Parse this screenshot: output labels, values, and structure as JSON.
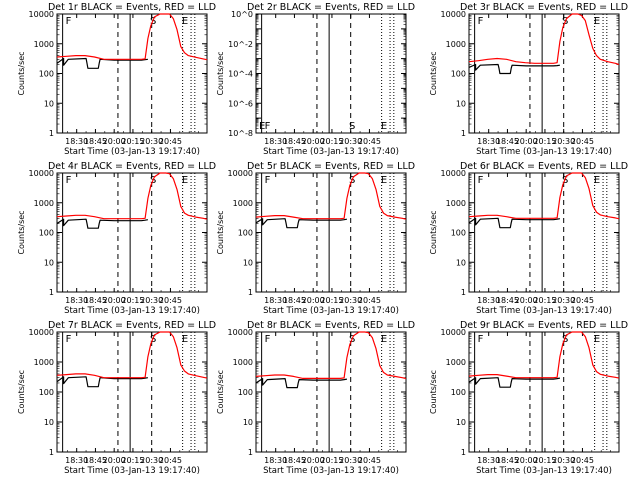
{
  "x_tick_labels": [
    "18:30",
    "18:45",
    "20:00",
    "20:15",
    "20:30",
    "20:45"
  ],
  "x_axis_label": "Start Time (03-Jan-13 19:17:40)",
  "y_axis_label": "Counts/sec",
  "log_y_tick_labels": [
    "1",
    "10",
    "100",
    "1000",
    "10000"
  ],
  "det2_y_tick_labels": [
    "10^0",
    "10^-2",
    "10^-4",
    "10^-6",
    "10^-8"
  ],
  "colors": {
    "events": "#000000",
    "lld": "#ff0000",
    "axes": "#000000"
  },
  "chart_data": [
    {
      "type": "line",
      "title": "Det 1r BLACK = Events, RED = LLD",
      "xlabel": "Start Time (03-Jan-13 19:17:40)",
      "ylabel": "Counts/sec",
      "y_scale": "log",
      "ylim": [
        1,
        10000
      ],
      "markers": [
        {
          "label": "F",
          "x": 0.35
        },
        {
          "label": "S",
          "x": 4.85
        },
        {
          "label": "E",
          "x": 6.55
        }
      ],
      "series": [
        {
          "name": "Events",
          "x": [
            0.0,
            0.35,
            0.35,
            0.6,
            1.55,
            1.6,
            1.65,
            2.2,
            2.25,
            2.3,
            3.05,
            4.5,
            4.7,
            4.85,
            4.85
          ],
          "y": [
            220,
            320,
            190,
            300,
            320,
            220,
            150,
            150,
            220,
            300,
            280,
            280,
            290,
            300,
            300
          ]
        },
        {
          "name": "LLD",
          "x": [
            0.0,
            0.5,
            1.0,
            1.5,
            2.0,
            2.5,
            3.0,
            3.5,
            4.0,
            4.5,
            4.7,
            4.85,
            5.0,
            5.2,
            5.5,
            5.8,
            6.0,
            6.2,
            6.4,
            6.6,
            6.8,
            7.0,
            7.4,
            7.8,
            8.0
          ],
          "y": [
            360,
            380,
            400,
            400,
            360,
            300,
            300,
            300,
            300,
            300,
            310,
            1500,
            4000,
            8000,
            11000,
            11000,
            10000,
            7000,
            3000,
            800,
            500,
            400,
            350,
            310,
            290
          ]
        }
      ]
    },
    {
      "type": "line",
      "title": "Det 2r BLACK = Events, RED = LLD",
      "xlabel": "Start Time (03-Jan-13 19:17:40)",
      "ylabel": "Counts/sec",
      "y_scale": "log",
      "ylim": [
        1e-08,
        1
      ],
      "markers": [
        {
          "label": "E",
          "x": 0.05
        },
        {
          "label": "F",
          "x": 0.35
        },
        {
          "label": "S",
          "x": 4.85
        },
        {
          "label": "E",
          "x": 6.55
        }
      ],
      "series": []
    },
    {
      "type": "line",
      "title": "Det 3r BLACK = Events, RED = LLD",
      "xlabel": "Start Time (03-Jan-13 19:17:40)",
      "ylabel": "Counts/sec",
      "y_scale": "log",
      "ylim": [
        1,
        10000
      ],
      "markers": [
        {
          "label": "F",
          "x": 0.35
        },
        {
          "label": "S",
          "x": 4.85
        },
        {
          "label": "E",
          "x": 6.55
        }
      ],
      "series": [
        {
          "name": "Events",
          "x": [
            0.0,
            0.35,
            0.35,
            0.6,
            1.55,
            1.6,
            1.65,
            2.2,
            2.25,
            2.3,
            3.05,
            4.5,
            4.7,
            4.85,
            4.85
          ],
          "y": [
            160,
            200,
            130,
            190,
            200,
            150,
            100,
            100,
            150,
            190,
            180,
            180,
            185,
            190,
            190
          ]
        },
        {
          "name": "LLD",
          "x": [
            0.0,
            0.5,
            1.0,
            1.5,
            2.0,
            2.5,
            3.0,
            3.5,
            4.0,
            4.5,
            4.7,
            4.85,
            5.0,
            5.2,
            5.5,
            5.8,
            6.0,
            6.2,
            6.4,
            6.6,
            6.8,
            7.0,
            7.4,
            7.8,
            8.0
          ],
          "y": [
            250,
            270,
            300,
            320,
            300,
            250,
            230,
            220,
            220,
            220,
            230,
            1200,
            3500,
            7000,
            10000,
            10000,
            9000,
            6000,
            2000,
            700,
            400,
            300,
            250,
            220,
            200
          ]
        }
      ]
    },
    {
      "type": "line",
      "title": "Det 4r BLACK = Events, RED = LLD",
      "xlabel": "Start Time (03-Jan-13 19:17:40)",
      "ylabel": "Counts/sec",
      "y_scale": "log",
      "ylim": [
        1,
        10000
      ],
      "markers": [
        {
          "label": "F",
          "x": 0.35
        },
        {
          "label": "S",
          "x": 4.85
        },
        {
          "label": "E",
          "x": 6.55
        }
      ],
      "series": [
        {
          "name": "Events",
          "x": [
            0.0,
            0.35,
            0.35,
            0.6,
            1.55,
            1.6,
            1.65,
            2.2,
            2.25,
            2.3,
            3.05,
            4.5,
            4.7,
            4.85,
            4.85
          ],
          "y": [
            200,
            280,
            170,
            260,
            280,
            200,
            140,
            140,
            200,
            260,
            250,
            250,
            260,
            270,
            270
          ]
        },
        {
          "name": "LLD",
          "x": [
            0.0,
            0.5,
            1.0,
            1.5,
            2.0,
            2.5,
            3.0,
            3.5,
            4.0,
            4.5,
            4.7,
            4.85,
            5.0,
            5.2,
            5.5,
            5.8,
            6.0,
            6.2,
            6.4,
            6.6,
            6.8,
            7.0,
            7.4,
            7.8,
            8.0
          ],
          "y": [
            340,
            360,
            380,
            380,
            340,
            290,
            290,
            290,
            290,
            290,
            300,
            1400,
            3800,
            7500,
            10500,
            10500,
            9500,
            6500,
            2800,
            750,
            450,
            380,
            330,
            300,
            280
          ]
        }
      ]
    },
    {
      "type": "line",
      "title": "Det 5r BLACK = Events, RED = LLD",
      "xlabel": "Start Time (03-Jan-13 19:17:40)",
      "ylabel": "Counts/sec",
      "y_scale": "log",
      "ylim": [
        1,
        10000
      ],
      "markers": [
        {
          "label": "F",
          "x": 0.35
        },
        {
          "label": "S",
          "x": 4.85
        },
        {
          "label": "E",
          "x": 6.55
        }
      ],
      "series": [
        {
          "name": "Events",
          "x": [
            0.0,
            0.35,
            0.35,
            0.6,
            1.55,
            1.6,
            1.65,
            2.2,
            2.25,
            2.3,
            3.05,
            4.5,
            4.7,
            4.85,
            4.85
          ],
          "y": [
            210,
            290,
            180,
            270,
            290,
            210,
            145,
            145,
            210,
            270,
            260,
            260,
            270,
            280,
            280
          ]
        },
        {
          "name": "LLD",
          "x": [
            0.0,
            0.5,
            1.0,
            1.5,
            2.0,
            2.5,
            3.0,
            3.5,
            4.0,
            4.5,
            4.7,
            4.85,
            5.0,
            5.2,
            5.5,
            5.8,
            6.0,
            6.2,
            6.4,
            6.6,
            6.8,
            7.0,
            7.4,
            7.8,
            8.0
          ],
          "y": [
            330,
            350,
            370,
            370,
            330,
            290,
            290,
            290,
            290,
            290,
            300,
            1400,
            3800,
            7500,
            10500,
            10500,
            9500,
            6500,
            2800,
            750,
            450,
            370,
            330,
            300,
            280
          ]
        }
      ]
    },
    {
      "type": "line",
      "title": "Det 6r BLACK = Events, RED = LLD",
      "xlabel": "Start Time (03-Jan-13 19:17:40)",
      "ylabel": "Counts/sec",
      "y_scale": "log",
      "ylim": [
        1,
        10000
      ],
      "markers": [
        {
          "label": "F",
          "x": 0.35
        },
        {
          "label": "S",
          "x": 4.85
        },
        {
          "label": "E",
          "x": 6.55
        }
      ],
      "series": [
        {
          "name": "Events",
          "x": [
            0.0,
            0.35,
            0.35,
            0.6,
            1.55,
            1.6,
            1.65,
            2.2,
            2.25,
            2.3,
            3.05,
            4.5,
            4.7,
            4.85,
            4.85
          ],
          "y": [
            210,
            300,
            180,
            280,
            300,
            210,
            145,
            145,
            210,
            280,
            270,
            270,
            280,
            290,
            290
          ]
        },
        {
          "name": "LLD",
          "x": [
            0.0,
            0.5,
            1.0,
            1.5,
            2.0,
            2.5,
            3.0,
            3.5,
            4.0,
            4.5,
            4.7,
            4.85,
            5.0,
            5.2,
            5.5,
            5.8,
            6.0,
            6.2,
            6.4,
            6.6,
            6.8,
            7.0,
            7.4,
            7.8,
            8.0
          ],
          "y": [
            340,
            360,
            380,
            380,
            340,
            300,
            300,
            300,
            300,
            300,
            310,
            1500,
            4000,
            8000,
            11000,
            11000,
            10000,
            7000,
            3000,
            800,
            480,
            390,
            340,
            310,
            290
          ]
        }
      ]
    },
    {
      "type": "line",
      "title": "Det 7r BLACK = Events, RED = LLD",
      "xlabel": "Start Time (03-Jan-13 19:17:40)",
      "ylabel": "Counts/sec",
      "y_scale": "log",
      "ylim": [
        1,
        10000
      ],
      "markers": [
        {
          "label": "F",
          "x": 0.35
        },
        {
          "label": "S",
          "x": 4.85
        },
        {
          "label": "E",
          "x": 6.55
        }
      ],
      "series": [
        {
          "name": "Events",
          "x": [
            0.0,
            0.35,
            0.35,
            0.6,
            1.55,
            1.6,
            1.65,
            2.2,
            2.25,
            2.3,
            3.05,
            4.5,
            4.7,
            4.85,
            4.85
          ],
          "y": [
            220,
            320,
            190,
            300,
            320,
            220,
            150,
            150,
            220,
            300,
            280,
            280,
            290,
            300,
            300
          ]
        },
        {
          "name": "LLD",
          "x": [
            0.0,
            0.5,
            1.0,
            1.5,
            2.0,
            2.5,
            3.0,
            3.5,
            4.0,
            4.5,
            4.7,
            4.85,
            5.0,
            5.2,
            5.5,
            5.8,
            6.0,
            6.2,
            6.4,
            6.6,
            6.8,
            7.0,
            7.4,
            7.8,
            8.0
          ],
          "y": [
            360,
            380,
            400,
            400,
            360,
            300,
            300,
            300,
            300,
            300,
            310,
            1500,
            4000,
            8000,
            11000,
            11000,
            10000,
            7000,
            3000,
            800,
            500,
            400,
            350,
            310,
            290
          ]
        }
      ]
    },
    {
      "type": "line",
      "title": "Det 8r BLACK = Events, RED = LLD",
      "xlabel": "Start Time (03-Jan-13 19:17:40)",
      "ylabel": "Counts/sec",
      "y_scale": "log",
      "ylim": [
        1,
        10000
      ],
      "markers": [
        {
          "label": "F",
          "x": 0.35
        },
        {
          "label": "S",
          "x": 4.85
        },
        {
          "label": "E",
          "x": 6.55
        }
      ],
      "series": [
        {
          "name": "Events",
          "x": [
            0.0,
            0.35,
            0.35,
            0.6,
            1.55,
            1.6,
            1.65,
            2.2,
            2.25,
            2.3,
            3.05,
            4.5,
            4.7,
            4.85,
            4.85
          ],
          "y": [
            200,
            280,
            170,
            260,
            280,
            200,
            140,
            140,
            200,
            260,
            250,
            250,
            260,
            270,
            270
          ]
        },
        {
          "name": "LLD",
          "x": [
            0.0,
            0.5,
            1.0,
            1.5,
            2.0,
            2.5,
            3.0,
            3.5,
            4.0,
            4.5,
            4.7,
            4.85,
            5.0,
            5.2,
            5.5,
            5.8,
            6.0,
            6.2,
            6.4,
            6.6,
            6.8,
            7.0,
            7.4,
            7.8,
            8.0
          ],
          "y": [
            330,
            350,
            370,
            370,
            330,
            285,
            285,
            285,
            285,
            285,
            295,
            1400,
            3800,
            7500,
            10500,
            10500,
            9500,
            6500,
            2800,
            750,
            450,
            370,
            330,
            300,
            280
          ]
        }
      ]
    },
    {
      "type": "line",
      "title": "Det 9r BLACK = Events, RED = LLD",
      "xlabel": "Start Time (03-Jan-13 19:17:40)",
      "ylabel": "Counts/sec",
      "y_scale": "log",
      "ylim": [
        1,
        10000
      ],
      "markers": [
        {
          "label": "F",
          "x": 0.35
        },
        {
          "label": "S",
          "x": 4.85
        },
        {
          "label": "E",
          "x": 6.55
        }
      ],
      "series": [
        {
          "name": "Events",
          "x": [
            0.0,
            0.35,
            0.35,
            0.6,
            1.55,
            1.6,
            1.65,
            2.2,
            2.25,
            2.3,
            3.05,
            4.5,
            4.7,
            4.85,
            4.85
          ],
          "y": [
            210,
            300,
            180,
            280,
            300,
            210,
            145,
            145,
            210,
            280,
            270,
            270,
            280,
            290,
            290
          ]
        },
        {
          "name": "LLD",
          "x": [
            0.0,
            0.5,
            1.0,
            1.5,
            2.0,
            2.5,
            3.0,
            3.5,
            4.0,
            4.5,
            4.7,
            4.85,
            5.0,
            5.2,
            5.5,
            5.8,
            6.0,
            6.2,
            6.4,
            6.6,
            6.8,
            7.0,
            7.4,
            7.8,
            8.0
          ],
          "y": [
            340,
            360,
            380,
            380,
            340,
            300,
            300,
            300,
            300,
            300,
            310,
            1500,
            4000,
            8000,
            11000,
            11000,
            10000,
            7000,
            3000,
            800,
            480,
            390,
            340,
            310,
            290
          ]
        }
      ]
    }
  ]
}
